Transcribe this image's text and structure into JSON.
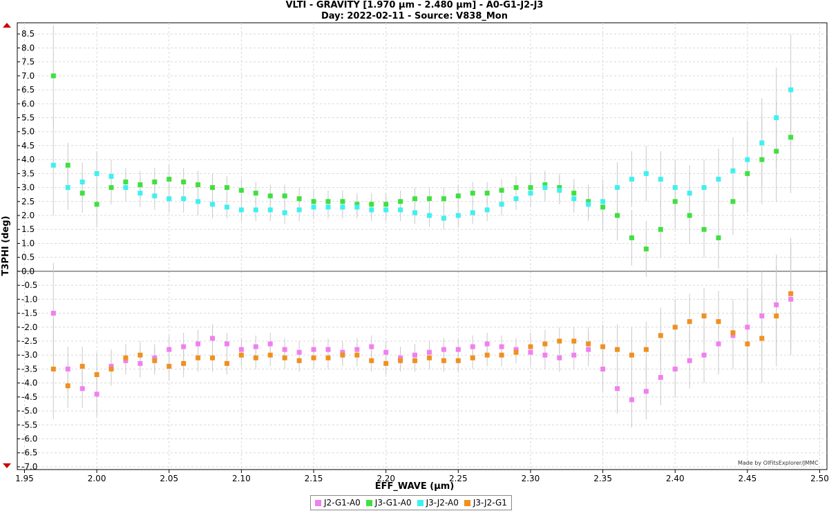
{
  "header": {
    "title_line1": "VLTI - GRAVITY [1.970 µm - 2.480 µm] - A0-G1-J2-J3",
    "title_line2": "Day: 2022-02-11 - Source: V838_Mon"
  },
  "credit": "Made by OIFitsExplorer/JMMC",
  "chart_data": {
    "type": "scatter",
    "xlabel": "EFF_WAVE (µm)",
    "ylabel": "T3PHI (deg)",
    "xlim": [
      1.945,
      2.505
    ],
    "ylim": [
      -7.1,
      8.9
    ],
    "x_ticks": [
      "1.95",
      "2.00",
      "2.05",
      "2.10",
      "2.15",
      "2.20",
      "2.25",
      "2.30",
      "2.35",
      "2.40",
      "2.45",
      "2.50"
    ],
    "y_ticks": [
      "8.5",
      "8.0",
      "7.5",
      "7.0",
      "6.5",
      "6.0",
      "5.5",
      "5.0",
      "4.5",
      "4.0",
      "3.5",
      "3.0",
      "2.5",
      "2.0",
      "1.5",
      "1.0",
      "0.5",
      "0.0",
      "-0.5",
      "-1.0",
      "-1.5",
      "-2.0",
      "-2.5",
      "-3.0",
      "-3.5",
      "-4.0",
      "-4.5",
      "-5.0",
      "-5.5",
      "-6.0",
      "-6.5",
      "-7.0"
    ],
    "grid": true,
    "error_bars": true,
    "legend_position": "bottom-center",
    "series": [
      {
        "name": "J2-G1-A0",
        "color": "#f080f0",
        "x": [
          1.97,
          1.98,
          1.99,
          2.0,
          2.01,
          2.02,
          2.03,
          2.04,
          2.05,
          2.06,
          2.07,
          2.08,
          2.09,
          2.1,
          2.11,
          2.12,
          2.13,
          2.14,
          2.15,
          2.16,
          2.17,
          2.18,
          2.19,
          2.2,
          2.21,
          2.22,
          2.23,
          2.24,
          2.25,
          2.26,
          2.27,
          2.28,
          2.29,
          2.3,
          2.31,
          2.32,
          2.33,
          2.34,
          2.35,
          2.36,
          2.37,
          2.38,
          2.39,
          2.4,
          2.41,
          2.42,
          2.43,
          2.44,
          2.45,
          2.46,
          2.47,
          2.48
        ],
        "y": [
          -1.5,
          -3.5,
          -4.2,
          -4.4,
          -3.4,
          -3.2,
          -3.3,
          -3.1,
          -2.8,
          -2.7,
          -2.6,
          -2.4,
          -2.6,
          -2.8,
          -2.7,
          -2.6,
          -2.8,
          -2.9,
          -2.8,
          -2.8,
          -2.9,
          -2.8,
          -2.7,
          -2.9,
          -3.1,
          -3.0,
          -2.9,
          -2.8,
          -2.8,
          -2.7,
          -2.6,
          -2.7,
          -2.8,
          -2.9,
          -3.0,
          -3.1,
          -3.0,
          -2.8,
          -3.5,
          -4.2,
          -4.6,
          -4.3,
          -3.8,
          -3.5,
          -3.2,
          -3.0,
          -2.6,
          -2.3,
          -2.0,
          -1.6,
          -1.2,
          -1.0
        ],
        "errors": [
          1.8,
          0.8,
          0.7,
          0.8,
          0.6,
          0.5,
          0.5,
          0.5,
          0.5,
          0.5,
          0.5,
          0.5,
          0.4,
          0.4,
          0.4,
          0.4,
          0.4,
          0.4,
          0.4,
          0.4,
          0.4,
          0.4,
          0.4,
          0.4,
          0.4,
          0.4,
          0.4,
          0.4,
          0.4,
          0.4,
          0.4,
          0.4,
          0.4,
          0.5,
          0.5,
          0.5,
          0.5,
          0.6,
          0.8,
          0.9,
          1.0,
          1.0,
          1.0,
          1.0,
          1.0,
          1.0,
          1.1,
          1.2,
          1.4,
          1.6,
          1.8,
          2.0
        ]
      },
      {
        "name": "J3-G1-A0",
        "color": "#40e040",
        "x": [
          1.97,
          1.98,
          1.99,
          2.0,
          2.01,
          2.02,
          2.03,
          2.04,
          2.05,
          2.06,
          2.07,
          2.08,
          2.09,
          2.1,
          2.11,
          2.12,
          2.13,
          2.14,
          2.15,
          2.16,
          2.17,
          2.18,
          2.19,
          2.2,
          2.21,
          2.22,
          2.23,
          2.24,
          2.25,
          2.26,
          2.27,
          2.28,
          2.29,
          2.3,
          2.31,
          2.32,
          2.33,
          2.34,
          2.35,
          2.36,
          2.37,
          2.38,
          2.39,
          2.4,
          2.41,
          2.42,
          2.43,
          2.44,
          2.45,
          2.46,
          2.47,
          2.48
        ],
        "y": [
          7.0,
          3.8,
          2.8,
          2.4,
          3.0,
          3.2,
          3.1,
          3.2,
          3.3,
          3.2,
          3.1,
          3.0,
          3.0,
          2.9,
          2.8,
          2.7,
          2.7,
          2.6,
          2.5,
          2.5,
          2.5,
          2.4,
          2.4,
          2.4,
          2.5,
          2.6,
          2.6,
          2.6,
          2.7,
          2.8,
          2.8,
          2.9,
          3.0,
          3.0,
          3.1,
          3.0,
          2.8,
          2.5,
          2.3,
          2.0,
          1.2,
          0.8,
          1.5,
          2.5,
          2.0,
          1.5,
          1.2,
          2.5,
          3.5,
          4.0,
          4.3,
          4.8
        ],
        "errors": [
          1.8,
          0.8,
          0.7,
          0.8,
          0.6,
          0.5,
          0.5,
          0.5,
          0.5,
          0.5,
          0.5,
          0.5,
          0.4,
          0.4,
          0.4,
          0.4,
          0.4,
          0.4,
          0.4,
          0.4,
          0.4,
          0.4,
          0.4,
          0.4,
          0.4,
          0.4,
          0.4,
          0.4,
          0.4,
          0.4,
          0.4,
          0.4,
          0.4,
          0.5,
          0.5,
          0.5,
          0.5,
          0.6,
          0.8,
          0.9,
          1.0,
          1.0,
          1.0,
          1.0,
          1.0,
          1.0,
          1.1,
          1.2,
          1.4,
          1.6,
          1.8,
          2.0
        ]
      },
      {
        "name": "J3-J2-A0",
        "color": "#40f0f0",
        "x": [
          1.97,
          1.98,
          1.99,
          2.0,
          2.01,
          2.02,
          2.03,
          2.04,
          2.05,
          2.06,
          2.07,
          2.08,
          2.09,
          2.1,
          2.11,
          2.12,
          2.13,
          2.14,
          2.15,
          2.16,
          2.17,
          2.18,
          2.19,
          2.2,
          2.21,
          2.22,
          2.23,
          2.24,
          2.25,
          2.26,
          2.27,
          2.28,
          2.29,
          2.3,
          2.31,
          2.32,
          2.33,
          2.34,
          2.35,
          2.36,
          2.37,
          2.38,
          2.39,
          2.4,
          2.41,
          2.42,
          2.43,
          2.44,
          2.45,
          2.46,
          2.47,
          2.48
        ],
        "y": [
          3.8,
          3.0,
          3.2,
          3.5,
          3.4,
          3.0,
          2.8,
          2.7,
          2.6,
          2.6,
          2.5,
          2.4,
          2.3,
          2.2,
          2.2,
          2.2,
          2.1,
          2.2,
          2.3,
          2.3,
          2.3,
          2.3,
          2.2,
          2.2,
          2.2,
          2.1,
          2.0,
          1.9,
          2.0,
          2.1,
          2.2,
          2.4,
          2.6,
          2.8,
          3.0,
          2.9,
          2.6,
          2.4,
          2.5,
          3.0,
          3.3,
          3.5,
          3.3,
          3.0,
          2.8,
          3.0,
          3.3,
          3.6,
          4.0,
          4.6,
          5.5,
          6.5
        ],
        "errors": [
          1.8,
          0.8,
          0.7,
          0.8,
          0.6,
          0.5,
          0.5,
          0.5,
          0.5,
          0.5,
          0.5,
          0.5,
          0.4,
          0.4,
          0.4,
          0.4,
          0.4,
          0.4,
          0.4,
          0.4,
          0.4,
          0.4,
          0.4,
          0.4,
          0.4,
          0.4,
          0.4,
          0.4,
          0.4,
          0.4,
          0.4,
          0.4,
          0.4,
          0.5,
          0.5,
          0.5,
          0.5,
          0.6,
          0.8,
          0.9,
          1.0,
          1.0,
          1.0,
          1.0,
          1.0,
          1.0,
          1.1,
          1.2,
          1.4,
          1.6,
          1.8,
          2.0
        ]
      },
      {
        "name": "J3-J2-G1",
        "color": "#f09020",
        "x": [
          1.97,
          1.98,
          1.99,
          2.0,
          2.01,
          2.02,
          2.03,
          2.04,
          2.05,
          2.06,
          2.07,
          2.08,
          2.09,
          2.1,
          2.11,
          2.12,
          2.13,
          2.14,
          2.15,
          2.16,
          2.17,
          2.18,
          2.19,
          2.2,
          2.21,
          2.22,
          2.23,
          2.24,
          2.25,
          2.26,
          2.27,
          2.28,
          2.29,
          2.3,
          2.31,
          2.32,
          2.33,
          2.34,
          2.35,
          2.36,
          2.37,
          2.38,
          2.39,
          2.4,
          2.41,
          2.42,
          2.43,
          2.44,
          2.45,
          2.46,
          2.47,
          2.48
        ],
        "y": [
          -3.5,
          -4.1,
          -3.4,
          -3.7,
          -3.5,
          -3.1,
          -3.0,
          -3.2,
          -3.4,
          -3.3,
          -3.1,
          -3.1,
          -3.3,
          -3.0,
          -3.1,
          -3.0,
          -3.1,
          -3.2,
          -3.1,
          -3.1,
          -3.0,
          -3.0,
          -3.2,
          -3.3,
          -3.2,
          -3.2,
          -3.1,
          -3.2,
          -3.2,
          -3.1,
          -3.0,
          -3.0,
          -2.9,
          -2.7,
          -2.6,
          -2.5,
          -2.5,
          -2.6,
          -2.7,
          -2.8,
          -3.0,
          -2.8,
          -2.3,
          -2.0,
          -1.8,
          -1.6,
          -1.8,
          -2.2,
          -2.6,
          -2.4,
          -1.6,
          -0.8
        ],
        "errors": [
          1.8,
          0.8,
          0.7,
          0.8,
          0.6,
          0.5,
          0.5,
          0.5,
          0.5,
          0.5,
          0.5,
          0.5,
          0.4,
          0.4,
          0.4,
          0.4,
          0.4,
          0.4,
          0.4,
          0.4,
          0.4,
          0.4,
          0.4,
          0.4,
          0.4,
          0.4,
          0.4,
          0.4,
          0.4,
          0.4,
          0.4,
          0.4,
          0.4,
          0.5,
          0.5,
          0.5,
          0.5,
          0.6,
          0.8,
          0.9,
          1.0,
          1.0,
          1.0,
          1.0,
          1.0,
          1.0,
          1.1,
          1.2,
          1.4,
          1.6,
          1.8,
          2.0
        ]
      }
    ]
  }
}
